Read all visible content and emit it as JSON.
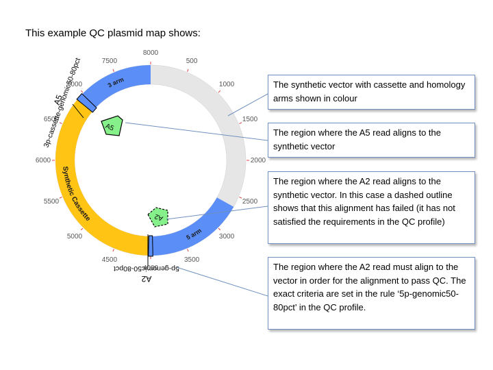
{
  "slide": {
    "title": "This example QC plasmid map shows:"
  },
  "plasmid": {
    "total_bp": 8000,
    "tick_labels": [
      "8000",
      "500",
      "1000",
      "1500",
      "2000",
      "2500",
      "3000",
      "3500",
      "4000",
      "4500",
      "5000",
      "5500",
      "6000",
      "6500",
      "7000",
      "7500"
    ],
    "features": [
      {
        "name": "3 arm",
        "start": 6930,
        "end": 8000,
        "color": "#5b8ef6"
      },
      {
        "name": "Synthetic Cassette",
        "start": 4000,
        "end": 6930,
        "color": "#ffc414"
      },
      {
        "name": "5 arm",
        "start": 2650,
        "end": 4000,
        "color": "#5b8ef6"
      }
    ],
    "backbone_color": "#e6e6e6",
    "reads": [
      {
        "name": "A5",
        "status": "pass",
        "color": "#86f08a"
      },
      {
        "name": "A2",
        "status": "failed",
        "color": "#86f08a"
      }
    ],
    "qc_regions": [
      {
        "read": "A5",
        "rule": "3p-cassette-genomic50-80pct"
      },
      {
        "read": "A2",
        "rule": "5p-genomic50-80pct"
      }
    ]
  },
  "callouts": [
    {
      "text": "The synthetic vector with cassette and homology arms shown in colour"
    },
    {
      "text": "The region where the A5 read aligns to the synthetic vector"
    },
    {
      "text": "The region where the A2 read aligns to the synthetic vector. In this case a dashed outline shows that this alignment has failed (it has not satisfied the requirements in the QC profile)"
    },
    {
      "text": "The region where the A2 read must align to the vector in order for the alignment to pass QC. The exact criteria are set in the rule ‘5p-genomic50-80pct’ in the QC profile."
    }
  ]
}
